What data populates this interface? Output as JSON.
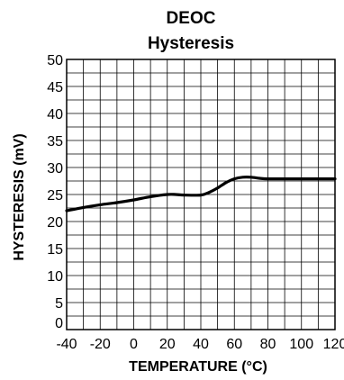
{
  "chart_data": {
    "type": "line",
    "title": "DEOC",
    "subtitle": "Hysteresis",
    "xlabel": "TEMPERATURE (°C)",
    "ylabel": "HYSTERESIS (mV)",
    "xlim": [
      -40,
      120
    ],
    "ylim": [
      0,
      50
    ],
    "x_ticks": [
      -40,
      -20,
      0,
      20,
      40,
      60,
      80,
      100,
      120
    ],
    "y_ticks": [
      0,
      5,
      10,
      15,
      20,
      25,
      30,
      35,
      40,
      45,
      50
    ],
    "grid": true,
    "series": [
      {
        "color": "#000000",
        "x": [
          -40,
          -30,
          -20,
          -10,
          0,
          10,
          20,
          25,
          30,
          40,
          45,
          50,
          55,
          60,
          65,
          70,
          75,
          80,
          90,
          100,
          110,
          120
        ],
        "y": [
          22.0,
          22.6,
          23.1,
          23.5,
          24.0,
          24.6,
          25.0,
          25.0,
          24.9,
          24.9,
          25.4,
          26.2,
          27.2,
          27.9,
          28.2,
          28.2,
          28.0,
          27.9,
          27.9,
          27.9,
          27.9,
          27.9
        ]
      }
    ]
  }
}
